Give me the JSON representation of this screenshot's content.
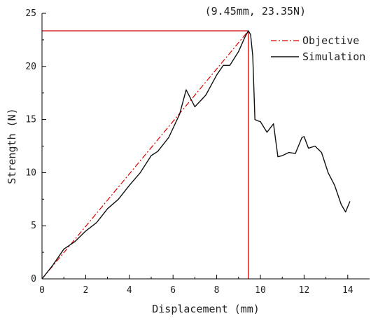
{
  "chart_data": {
    "type": "line",
    "xlabel": "Displacement (mm)",
    "ylabel": "Strength (N)",
    "xlim": [
      0,
      15
    ],
    "ylim": [
      0,
      25
    ],
    "xticks": [
      0,
      2,
      4,
      6,
      8,
      10,
      12,
      14
    ],
    "yticks": [
      0,
      5,
      10,
      15,
      20,
      25
    ],
    "grid": false,
    "legend_position": "top-right",
    "annotation": {
      "text": "(9.45mm, 23.35N)",
      "x": 9.45,
      "y": 23.35
    },
    "guide_lines": {
      "x": 9.45,
      "y": 23.35,
      "color": "#cc0000"
    },
    "series": [
      {
        "name": "Objective",
        "style": "dash-dot",
        "color": "#dd0000",
        "x": [
          0,
          9.45
        ],
        "y": [
          0,
          23.35
        ]
      },
      {
        "name": "Simulation",
        "style": "solid",
        "color": "#111111",
        "x": [
          0,
          0.5,
          1,
          1.5,
          2,
          2.5,
          3,
          3.5,
          4,
          4.5,
          5,
          5.3,
          5.8,
          6.3,
          6.6,
          7.0,
          7.5,
          8.0,
          8.3,
          8.6,
          9.0,
          9.3,
          9.45,
          9.55,
          9.65,
          9.75,
          9.85,
          10.0,
          10.3,
          10.6,
          10.8,
          11.0,
          11.3,
          11.6,
          11.9,
          12.0,
          12.2,
          12.5,
          12.8,
          13.1,
          13.4,
          13.7,
          13.9,
          14.1
        ],
        "y": [
          0,
          1.3,
          2.8,
          3.5,
          4.5,
          5.3,
          6.6,
          7.5,
          8.8,
          10.0,
          11.6,
          12.0,
          13.3,
          15.5,
          17.8,
          16.2,
          17.3,
          19.2,
          20.1,
          20.1,
          21.4,
          22.8,
          23.35,
          23.0,
          21.0,
          15.0,
          14.9,
          14.8,
          13.8,
          14.6,
          11.5,
          11.6,
          11.9,
          11.8,
          13.3,
          13.4,
          12.3,
          12.5,
          11.9,
          10.0,
          8.8,
          7.0,
          6.3,
          7.3
        ]
      }
    ]
  }
}
